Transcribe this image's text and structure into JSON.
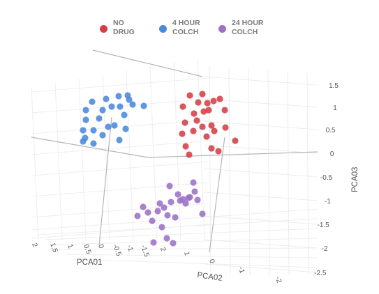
{
  "chart_data": {
    "type": "scatter",
    "legend_position": "top-center",
    "axes": {
      "x": {
        "label": "PCA01",
        "ticks": [
          "2",
          "1.5",
          "1",
          "0.5",
          "0",
          "-0.5",
          "-1",
          "-1.5"
        ]
      },
      "y": {
        "label": "PCA02",
        "ticks": [
          "2",
          "1",
          "0",
          "-1",
          "-2"
        ]
      },
      "z": {
        "label": "PCA03",
        "ticks": [
          "1.5",
          "1",
          "0.5",
          "0",
          "-0.5",
          "-1",
          "-1.5",
          "-2",
          "-2.5"
        ]
      }
    },
    "series": [
      {
        "name": "NO DRUG",
        "name_line1": "NO",
        "name_line2": "DRUG",
        "color": "#d43f45",
        "points": [
          [
            272,
            137
          ],
          [
            290,
            135
          ],
          [
            315,
            142
          ],
          [
            262,
            153
          ],
          [
            284,
            147
          ],
          [
            297,
            148
          ],
          [
            306,
            145
          ],
          [
            278,
            163
          ],
          [
            292,
            160
          ],
          [
            322,
            158
          ],
          [
            299,
            158
          ],
          [
            265,
            176
          ],
          [
            282,
            173
          ],
          [
            290,
            182
          ],
          [
            303,
            180
          ],
          [
            277,
            188
          ],
          [
            307,
            188
          ],
          [
            323,
            183
          ],
          [
            261,
            192
          ],
          [
            296,
            196
          ],
          [
            337,
            202
          ],
          [
            266,
            210
          ],
          [
            271,
            222
          ],
          [
            303,
            213
          ],
          [
            313,
            217
          ]
        ]
      },
      {
        "name": "4 HOUR COLCH",
        "name_line1": "4 HOUR",
        "name_line2": "COLCH",
        "color": "#4a89dc",
        "points": [
          [
            132,
            146
          ],
          [
            152,
            142
          ],
          [
            170,
            138
          ],
          [
            183,
            137
          ],
          [
            123,
            158
          ],
          [
            147,
            158
          ],
          [
            160,
            153
          ],
          [
            172,
            153
          ],
          [
            178,
            165
          ],
          [
            206,
            152
          ],
          [
            190,
            150
          ],
          [
            123,
            172
          ],
          [
            119,
            187
          ],
          [
            134,
            187
          ],
          [
            155,
            182
          ],
          [
            164,
            180
          ],
          [
            122,
            198
          ],
          [
            147,
            194
          ],
          [
            119,
            203
          ],
          [
            134,
            206
          ],
          [
            171,
            201
          ],
          [
            180,
            185
          ],
          [
            142,
            170
          ],
          [
            185,
            143
          ]
        ]
      },
      {
        "name": "24 HOUR COLCH",
        "name_line1": "24 HOUR",
        "name_line2": "COLCH",
        "color": "#9b72c6",
        "points": [
          [
            243,
            267
          ],
          [
            277,
            262
          ],
          [
            255,
            279
          ],
          [
            262,
            286
          ],
          [
            272,
            283
          ],
          [
            279,
            275
          ],
          [
            229,
            292
          ],
          [
            245,
            290
          ],
          [
            266,
            292
          ],
          [
            283,
            287
          ],
          [
            205,
            297
          ],
          [
            212,
            305
          ],
          [
            226,
            303
          ],
          [
            235,
            298
          ],
          [
            240,
            309
          ],
          [
            290,
            307
          ],
          [
            197,
            310
          ],
          [
            218,
            317
          ],
          [
            232,
            326
          ],
          [
            251,
            312
          ],
          [
            239,
            342
          ],
          [
            220,
            348
          ],
          [
            248,
            349
          ],
          [
            270,
            284
          ],
          [
            258,
            288
          ]
        ]
      }
    ]
  }
}
